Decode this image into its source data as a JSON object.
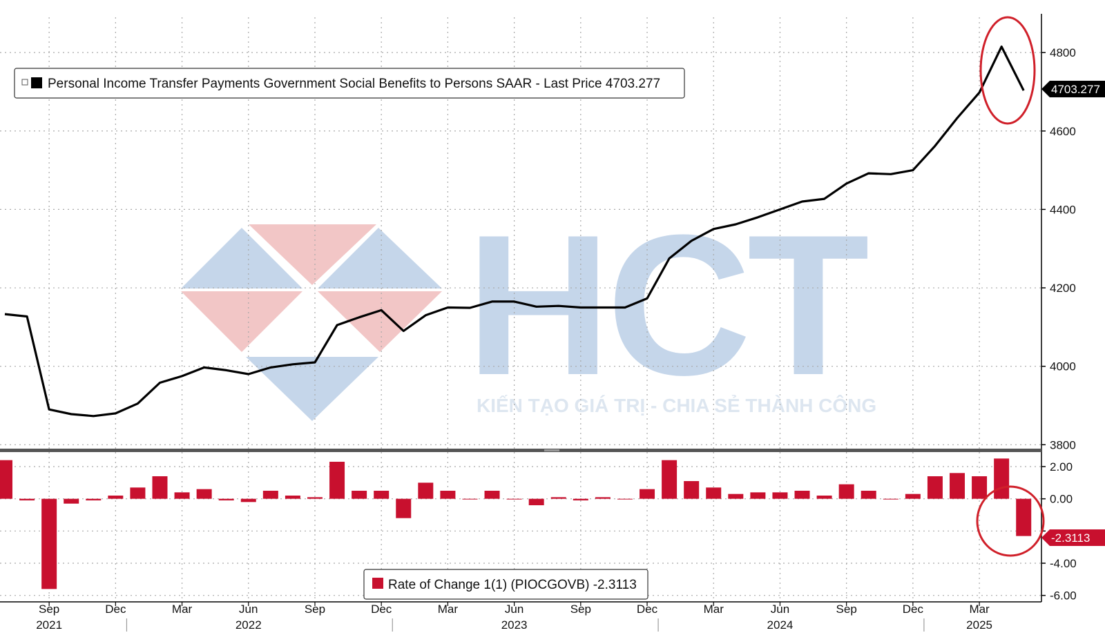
{
  "chart_data": [
    {
      "type": "line",
      "x": [
        "2021-07",
        "2021-08",
        "2021-09",
        "2021-10",
        "2021-11",
        "2021-12",
        "2022-01",
        "2022-02",
        "2022-03",
        "2022-04",
        "2022-05",
        "2022-06",
        "2022-07",
        "2022-08",
        "2022-09",
        "2022-10",
        "2022-11",
        "2022-12",
        "2023-01",
        "2023-02",
        "2023-03",
        "2023-04",
        "2023-05",
        "2023-06",
        "2023-07",
        "2023-08",
        "2023-09",
        "2023-10",
        "2023-11",
        "2023-12",
        "2024-01",
        "2024-02",
        "2024-03",
        "2024-04",
        "2024-05",
        "2024-06",
        "2024-07",
        "2024-08",
        "2024-09",
        "2024-10",
        "2024-11",
        "2024-12",
        "2025-01",
        "2025-02",
        "2025-03",
        "2025-04",
        "2025-05"
      ],
      "series": [
        {
          "name": "Personal Income Transfer Payments Government Social Benefits to Persons SAAR - Last Price 4703.277",
          "color": "#000000",
          "values": [
            4133,
            4127,
            3890,
            3878,
            3873,
            3880,
            3905,
            3958,
            3975,
            3997,
            3990,
            3980,
            3997,
            4005,
            4010,
            4105,
            4125,
            4143,
            4090,
            4130,
            4150,
            4149,
            4165,
            4165,
            4152,
            4154,
            4150,
            4150,
            4150,
            4173,
            4275,
            4320,
            4350,
            4362,
            4380,
            4400,
            4420,
            4427,
            4466,
            4492,
            4490,
            4500,
            4562,
            4633,
            4698,
            4815,
            4703.277
          ]
        }
      ],
      "ylim": [
        3790,
        4890
      ],
      "yticks": [
        3800,
        4000,
        4200,
        4400,
        4600,
        4800
      ],
      "ytick_labels": [
        "3800",
        "4000",
        "4200",
        "4400",
        "4600",
        "4800"
      ],
      "last_value_label": "4703.277",
      "legend_text": "Personal Income Transfer Payments Government Social Benefits to Persons SAAR - Last Price 4703.277",
      "legend_position": "top-left",
      "grid": true
    },
    {
      "type": "bar",
      "x": [
        "2021-07",
        "2021-08",
        "2021-09",
        "2021-10",
        "2021-11",
        "2021-12",
        "2022-01",
        "2022-02",
        "2022-03",
        "2022-04",
        "2022-05",
        "2022-06",
        "2022-07",
        "2022-08",
        "2022-09",
        "2022-10",
        "2022-11",
        "2022-12",
        "2023-01",
        "2023-02",
        "2023-03",
        "2023-04",
        "2023-05",
        "2023-06",
        "2023-07",
        "2023-08",
        "2023-09",
        "2023-10",
        "2023-11",
        "2023-12",
        "2024-01",
        "2024-02",
        "2024-03",
        "2024-04",
        "2024-05",
        "2024-06",
        "2024-07",
        "2024-08",
        "2024-09",
        "2024-10",
        "2024-11",
        "2024-12",
        "2025-01",
        "2025-02",
        "2025-03",
        "2025-04",
        "2025-05"
      ],
      "series": [
        {
          "name": "Rate of Change 1(1) (PIOCGOVB) -2.3113",
          "color": "#c8102e",
          "values": [
            2.4,
            -0.1,
            -5.6,
            -0.3,
            -0.1,
            0.2,
            0.7,
            1.4,
            0.4,
            0.6,
            -0.1,
            -0.2,
            0.5,
            0.2,
            0.1,
            2.3,
            0.5,
            0.5,
            -1.2,
            1.0,
            0.5,
            0.0,
            0.5,
            0.0,
            -0.4,
            0.1,
            -0.1,
            0.1,
            0.0,
            0.6,
            2.4,
            1.1,
            0.7,
            0.3,
            0.4,
            0.4,
            0.5,
            0.2,
            0.9,
            0.5,
            0.0,
            0.3,
            1.4,
            1.6,
            1.4,
            2.5,
            -2.3113
          ]
        }
      ],
      "ylim": [
        -6.4,
        2.9
      ],
      "yticks": [
        -6,
        -4,
        -2,
        0,
        2
      ],
      "ytick_labels": [
        "-6.00",
        "-4.00",
        "",
        "0.00",
        "2.00"
      ],
      "last_value_label": "-2.3113",
      "legend_text": "Rate of Change 1(1) (PIOCGOVB) -2.3113",
      "legend_position": "bottom-center",
      "grid": true
    }
  ],
  "x_axis": {
    "month_labels": [
      {
        "x": "2021-09",
        "label": "Sep"
      },
      {
        "x": "2021-12",
        "label": "Dec"
      },
      {
        "x": "2022-03",
        "label": "Mar"
      },
      {
        "x": "2022-06",
        "label": "Jun"
      },
      {
        "x": "2022-09",
        "label": "Sep"
      },
      {
        "x": "2022-12",
        "label": "Dec"
      },
      {
        "x": "2023-03",
        "label": "Mar"
      },
      {
        "x": "2023-06",
        "label": "Jun"
      },
      {
        "x": "2023-09",
        "label": "Sep"
      },
      {
        "x": "2023-12",
        "label": "Dec"
      },
      {
        "x": "2024-03",
        "label": "Mar"
      },
      {
        "x": "2024-06",
        "label": "Jun"
      },
      {
        "x": "2024-09",
        "label": "Sep"
      },
      {
        "x": "2024-12",
        "label": "Dec"
      },
      {
        "x": "2025-03",
        "label": "Mar"
      }
    ],
    "year_labels": [
      {
        "x": "2021-09",
        "label": "2021"
      },
      {
        "x": "2022-06",
        "label": "2022"
      },
      {
        "x": "2023-06",
        "label": "2023"
      },
      {
        "x": "2024-06",
        "label": "2024"
      },
      {
        "x": "2025-03",
        "label": "2025"
      }
    ]
  },
  "watermark": {
    "letters": "HCT",
    "tagline": "KIẾN TẠO GIÁ TRỊ - CHIA SẺ THÀNH CÔNG"
  },
  "colors": {
    "line": "#000000",
    "bar": "#c8102e",
    "highlight_circle": "#d0202a",
    "grid": "#a8a8a8",
    "axis": "#000000",
    "watermark_blue": "#c5d6ea",
    "watermark_red": "#f2c6c6"
  }
}
